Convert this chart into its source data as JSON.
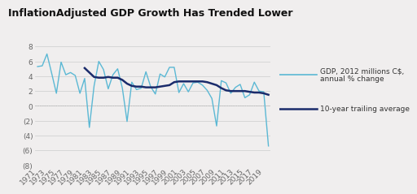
{
  "title": "InflationAdjusted GDP Growth Has Trended Lower",
  "title_fontsize": 9,
  "title_fontweight": "bold",
  "background_color": "#f0eeee",
  "plot_bg_color": "#f0eeee",
  "years": [
    1971,
    1972,
    1973,
    1974,
    1975,
    1976,
    1977,
    1978,
    1979,
    1980,
    1981,
    1982,
    1983,
    1984,
    1985,
    1986,
    1987,
    1988,
    1989,
    1990,
    1991,
    1992,
    1993,
    1994,
    1995,
    1996,
    1997,
    1998,
    1999,
    2000,
    2001,
    2002,
    2003,
    2004,
    2005,
    2006,
    2007,
    2008,
    2009,
    2010,
    2011,
    2012,
    2013,
    2014,
    2015,
    2016,
    2017,
    2018,
    2019,
    2020
  ],
  "gdp": [
    5.3,
    5.4,
    7.0,
    4.4,
    1.7,
    5.9,
    4.2,
    4.5,
    4.1,
    1.7,
    3.7,
    -2.9,
    2.7,
    6.0,
    4.9,
    2.3,
    4.2,
    5.0,
    2.4,
    -2.1,
    3.2,
    2.2,
    2.4,
    4.6,
    2.6,
    1.6,
    4.3,
    3.9,
    5.2,
    5.2,
    1.8,
    3.0,
    1.9,
    3.1,
    3.2,
    2.8,
    2.1,
    1.0,
    -2.7,
    3.4,
    3.1,
    1.7,
    2.5,
    2.9,
    1.1,
    1.5,
    3.2,
    2.0,
    1.9,
    -5.4
  ],
  "trailing_avg": [
    null,
    null,
    null,
    null,
    null,
    null,
    null,
    null,
    null,
    null,
    5.1,
    4.5,
    3.9,
    3.8,
    3.8,
    3.9,
    3.8,
    3.8,
    3.5,
    3.0,
    2.7,
    2.6,
    2.6,
    2.5,
    2.5,
    2.5,
    2.6,
    2.7,
    2.8,
    3.2,
    3.3,
    3.3,
    3.3,
    3.3,
    3.3,
    3.3,
    3.2,
    3.0,
    2.8,
    2.4,
    2.1,
    2.0,
    2.0,
    2.0,
    2.0,
    1.9,
    1.8,
    1.8,
    1.7,
    1.5
  ],
  "gdp_color": "#5bb8d4",
  "avg_color": "#1a2b6b",
  "ylim": [
    -8,
    9
  ],
  "yticks": [
    -8,
    -6,
    -4,
    -2,
    0,
    2,
    4,
    6,
    8
  ],
  "ytick_labels": [
    "(8)",
    "(6)",
    "(4)",
    "(2)",
    "0",
    "2",
    "4",
    "6",
    "8"
  ],
  "xtick_start": 1971,
  "xtick_end": 2020,
  "xtick_step": 2,
  "legend_gdp": "GDP, 2012 millions C$,\nannual % change",
  "legend_avg": "10-year trailing average",
  "tick_fontsize": 6.5,
  "gdp_linewidth": 1.0,
  "avg_linewidth": 1.8
}
